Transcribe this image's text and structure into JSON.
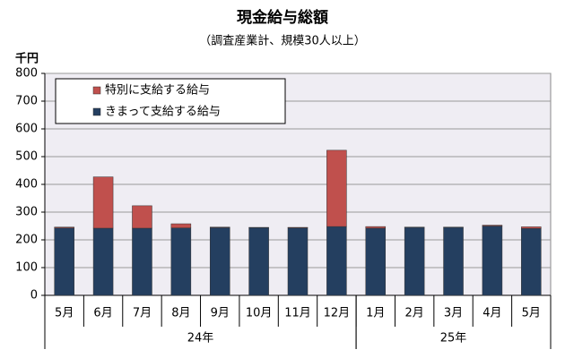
{
  "chart_data": {
    "type": "stacked-bar",
    "title": "現金給与総額",
    "subtitle": "（調査産業計、規模30人以上）",
    "y_label": "千円",
    "groups": [
      {
        "name": "24年",
        "categories": [
          "5月",
          "6月",
          "7月",
          "8月",
          "9月",
          "10月",
          "11月",
          "12月"
        ]
      },
      {
        "name": "25年",
        "categories": [
          "1月",
          "2月",
          "3月",
          "4月",
          "5月"
        ]
      }
    ],
    "series": [
      {
        "name": "きまって支給する給与",
        "color": "#243f60",
        "values": [
          243,
          242,
          242,
          243,
          244,
          244,
          243,
          248,
          242,
          245,
          245,
          250,
          241
        ]
      },
      {
        "name": "特別に支給する給与",
        "color": "#c0504d",
        "values": [
          3,
          185,
          81,
          15,
          2,
          1,
          2,
          275,
          6,
          1,
          1,
          3,
          6
        ]
      }
    ],
    "ylim": [
      0,
      800
    ],
    "yticks": [
      0,
      100,
      200,
      300,
      400,
      500,
      600,
      700,
      800
    ],
    "grid": true
  }
}
